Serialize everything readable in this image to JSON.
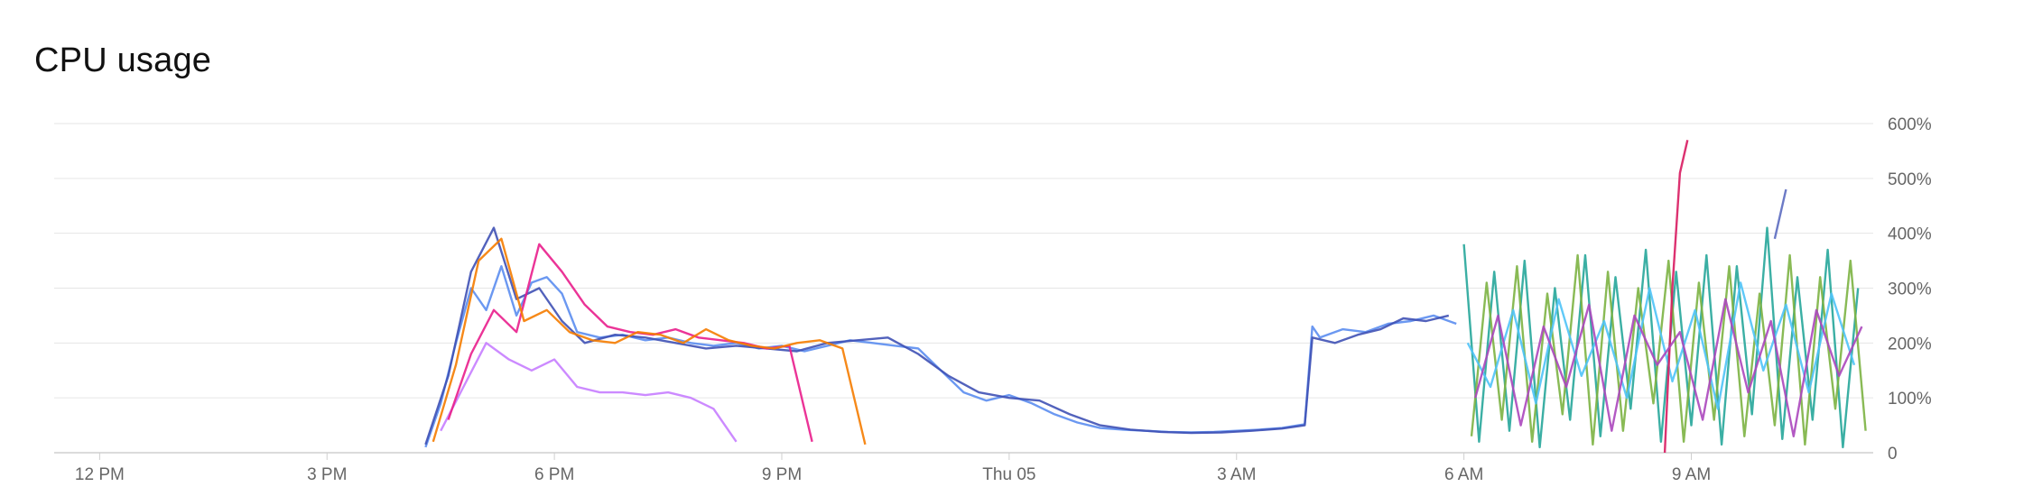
{
  "chart_title": "CPU usage",
  "chart_data": {
    "type": "line",
    "title": "CPU usage",
    "xlabel": "",
    "ylabel": "",
    "y_unit": "%",
    "ylim": [
      0,
      600
    ],
    "y_ticks": [
      0,
      100,
      200,
      300,
      400,
      500,
      600
    ],
    "y_tick_labels": [
      "0",
      "100%",
      "200%",
      "300%",
      "400%",
      "500%",
      "600%"
    ],
    "y_axis_position": "right",
    "grid": true,
    "legend": "none",
    "x_range_hours": [
      -0.6,
      23.4
    ],
    "x_ticks": [
      0,
      3,
      6,
      9,
      12,
      15,
      18,
      21
    ],
    "x_tick_labels": [
      "12 PM",
      "3 PM",
      "6 PM",
      "9 PM",
      "Thu 05",
      "3 AM",
      "6 AM",
      "9 AM"
    ],
    "series_colors": [
      "#5b8def",
      "#3f51b5",
      "#c77dff",
      "#e91e8c",
      "#f57c00",
      "#26a69a",
      "#7cb342",
      "#4fc3f7",
      "#d81b60",
      "#5c6bc0",
      "#ab47bc",
      "#ef6c00",
      "#43a047",
      "#1e88e5",
      "#8e24aa",
      "#00acc1"
    ],
    "series": [
      {
        "x": [
          4.3,
          4.5,
          4.7,
          4.9,
          5.1,
          5.3,
          5.5,
          5.7,
          5.9,
          6.1,
          6.3,
          6.6,
          6.9,
          7.2,
          7.5,
          7.8,
          8.1,
          8.4,
          8.7,
          9.0,
          9.3,
          9.6,
          9.9,
          10.2,
          10.5,
          10.8,
          11.1,
          11.4,
          11.7,
          12.0,
          12.3,
          12.6,
          12.9,
          13.2,
          13.5,
          13.8,
          14.1,
          14.4,
          14.7,
          15.0,
          15.3,
          15.6,
          15.9,
          16.0,
          16.1,
          16.4,
          16.7,
          17.0,
          17.3,
          17.6,
          17.9
        ],
        "y": [
          10,
          90,
          200,
          300,
          260,
          340,
          250,
          310,
          320,
          290,
          220,
          210,
          215,
          205,
          210,
          200,
          195,
          200,
          190,
          195,
          185,
          195,
          205,
          200,
          195,
          190,
          150,
          110,
          95,
          105,
          90,
          70,
          55,
          45,
          42,
          40,
          38,
          37,
          38,
          40,
          42,
          45,
          52,
          230,
          210,
          225,
          220,
          235,
          240,
          250,
          235
        ]
      },
      {
        "x": [
          4.3,
          4.6,
          4.9,
          5.2,
          5.5,
          5.8,
          6.1,
          6.4,
          6.8,
          7.2,
          7.6,
          8.0,
          8.4,
          8.8,
          9.2,
          9.6,
          10.0,
          10.4,
          10.8,
          11.2,
          11.6,
          12.0,
          12.4,
          12.8,
          13.2,
          13.6,
          14.0,
          14.4,
          14.8,
          15.2,
          15.6,
          15.9,
          16.0,
          16.3,
          16.6,
          16.9,
          17.2,
          17.5,
          17.8
        ],
        "y": [
          15,
          140,
          330,
          410,
          280,
          300,
          240,
          200,
          215,
          210,
          200,
          190,
          195,
          190,
          185,
          200,
          205,
          210,
          180,
          140,
          110,
          100,
          95,
          70,
          50,
          42,
          38,
          36,
          37,
          40,
          44,
          50,
          210,
          200,
          215,
          225,
          245,
          240,
          250
        ]
      },
      {
        "x": [
          4.5,
          4.8,
          5.1,
          5.4,
          5.7,
          6.0,
          6.3,
          6.6,
          6.9,
          7.2,
          7.5,
          7.8,
          8.1,
          8.4
        ],
        "y": [
          40,
          120,
          200,
          170,
          150,
          170,
          120,
          110,
          110,
          105,
          110,
          100,
          80,
          20
        ]
      },
      {
        "x": [
          4.6,
          4.9,
          5.2,
          5.5,
          5.8,
          6.1,
          6.4,
          6.7,
          7.0,
          7.3,
          7.6,
          7.9,
          8.2,
          8.5,
          8.8,
          9.1,
          9.4
        ],
        "y": [
          60,
          180,
          260,
          220,
          380,
          330,
          270,
          230,
          220,
          215,
          225,
          210,
          205,
          200,
          190,
          195,
          20
        ]
      },
      {
        "x": [
          4.4,
          4.7,
          5.0,
          5.3,
          5.6,
          5.9,
          6.2,
          6.5,
          6.8,
          7.1,
          7.4,
          7.7,
          8.0,
          8.3,
          8.6,
          8.9,
          9.2,
          9.5,
          9.8,
          10.1
        ],
        "y": [
          20,
          160,
          350,
          390,
          240,
          260,
          220,
          205,
          200,
          220,
          215,
          200,
          225,
          205,
          195,
          190,
          200,
          205,
          190,
          15
        ]
      },
      {
        "x": [
          18.0,
          18.2,
          18.4,
          18.6,
          18.8,
          19.0,
          19.2,
          19.4,
          19.6,
          19.8,
          20.0,
          20.2,
          20.4,
          20.6,
          20.8,
          21.0,
          21.2,
          21.4,
          21.6,
          21.8,
          22.0,
          22.2,
          22.4,
          22.6,
          22.8,
          23.0,
          23.2
        ],
        "y": [
          380,
          20,
          330,
          40,
          350,
          10,
          300,
          60,
          360,
          30,
          320,
          80,
          370,
          20,
          330,
          50,
          360,
          15,
          340,
          70,
          410,
          25,
          320,
          60,
          370,
          10,
          300
        ]
      },
      {
        "x": [
          18.1,
          18.3,
          18.5,
          18.7,
          18.9,
          19.1,
          19.3,
          19.5,
          19.7,
          19.9,
          20.1,
          20.3,
          20.5,
          20.7,
          20.9,
          21.1,
          21.3,
          21.5,
          21.7,
          21.9,
          22.1,
          22.3,
          22.5,
          22.7,
          22.9,
          23.1,
          23.3
        ],
        "y": [
          30,
          310,
          60,
          340,
          20,
          290,
          70,
          360,
          15,
          330,
          40,
          300,
          90,
          350,
          20,
          310,
          60,
          340,
          30,
          290,
          50,
          360,
          15,
          320,
          80,
          350,
          40
        ]
      },
      {
        "x": [
          18.05,
          18.35,
          18.65,
          18.95,
          19.25,
          19.55,
          19.85,
          20.15,
          20.45,
          20.75,
          21.05,
          21.35,
          21.65,
          21.95,
          22.25,
          22.55,
          22.85,
          23.15
        ],
        "y": [
          200,
          120,
          260,
          90,
          280,
          140,
          240,
          100,
          300,
          130,
          260,
          80,
          310,
          150,
          270,
          110,
          290,
          160
        ]
      },
      {
        "x": [
          20.65,
          20.75,
          20.85,
          20.95
        ],
        "y": [
          0,
          300,
          510,
          570
        ]
      },
      {
        "x": [
          22.1,
          22.25
        ],
        "y": [
          390,
          480
        ]
      },
      {
        "x": [
          18.15,
          18.45,
          18.75,
          19.05,
          19.35,
          19.65,
          19.95,
          20.25,
          20.55,
          20.85,
          21.15,
          21.45,
          21.75,
          22.05,
          22.35,
          22.65,
          22.95,
          23.25
        ],
        "y": [
          100,
          250,
          50,
          230,
          120,
          270,
          40,
          250,
          160,
          220,
          60,
          280,
          110,
          240,
          30,
          260,
          140,
          230
        ]
      }
    ]
  }
}
